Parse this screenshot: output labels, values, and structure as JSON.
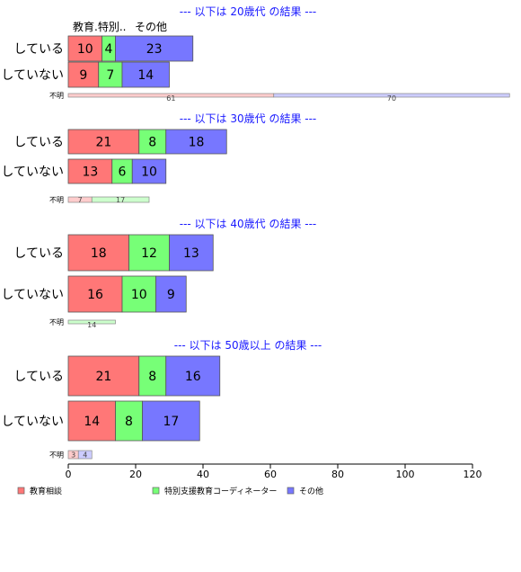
{
  "chart_data": {
    "type": "bar",
    "orientation": "horizontal",
    "stacked": true,
    "xlim": [
      0,
      120
    ],
    "x_ticks": [
      "0",
      "20",
      "40",
      "60",
      "80",
      "100",
      "120"
    ],
    "column_headers": [
      "教育.特別..",
      "その他"
    ],
    "legend": [
      {
        "name": "教育相談",
        "color": "#ff7777"
      },
      {
        "name": "特別支援教育コーディネーター",
        "color": "#77ff77"
      },
      {
        "name": "その他",
        "color": "#7777ff"
      }
    ],
    "series_colors": [
      "#ff7777",
      "#77ff77",
      "#7777ff"
    ],
    "unknown_colors": [
      "#ffcccc",
      "#ccffcc",
      "#ccccff"
    ],
    "sections": [
      {
        "title": "--- 以下は 20歳代 の結果 ---",
        "rows": [
          {
            "label": "している",
            "values": [
              10,
              4,
              23
            ]
          },
          {
            "label": "していない",
            "values": [
              9,
              7,
              14
            ]
          }
        ],
        "unknown": {
          "label": "不明",
          "values": [
            61,
            0,
            70
          ]
        }
      },
      {
        "title": "--- 以下は 30歳代 の結果 ---",
        "rows": [
          {
            "label": "している",
            "values": [
              21,
              8,
              18
            ]
          },
          {
            "label": "していない",
            "values": [
              13,
              6,
              10
            ]
          }
        ],
        "unknown": {
          "label": "不明",
          "values": [
            7,
            17,
            0
          ]
        }
      },
      {
        "title": "--- 以下は 40歳代 の結果 ---",
        "rows": [
          {
            "label": "している",
            "values": [
              18,
              12,
              13
            ]
          },
          {
            "label": "していない",
            "values": [
              16,
              10,
              9
            ]
          }
        ],
        "unknown": {
          "label": "不明",
          "values": [
            0,
            14,
            0
          ]
        }
      },
      {
        "title": "--- 以下は 50歳以上 の結果 ---",
        "rows": [
          {
            "label": "している",
            "values": [
              21,
              8,
              16
            ]
          },
          {
            "label": "していない",
            "values": [
              14,
              8,
              17
            ]
          }
        ],
        "unknown": {
          "label": "不明",
          "values": [
            3,
            0,
            4
          ]
        }
      }
    ]
  }
}
